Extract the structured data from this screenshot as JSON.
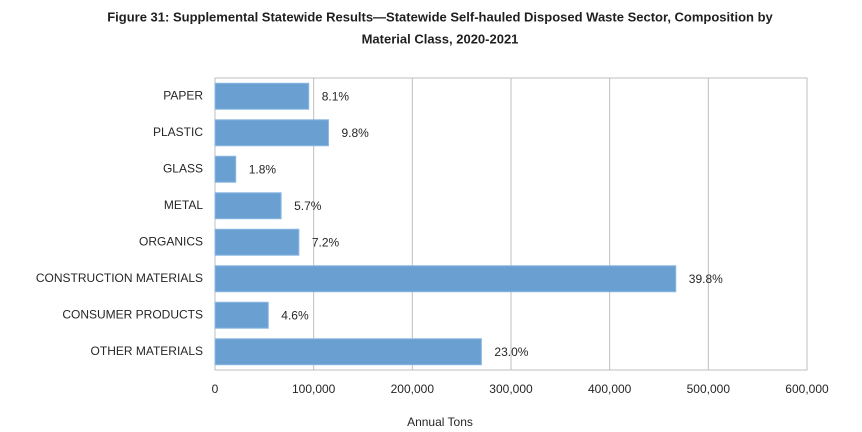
{
  "chart_data": {
    "type": "bar",
    "orientation": "horizontal",
    "title": [
      "Figure 31: Supplemental Statewide Results—Statewide Self-hauled Disposed Waste Sector, Composition by",
      "Material Class, 2020-2021"
    ],
    "x_label": "Annual Tons",
    "categories": [
      "PAPER",
      "PLASTIC",
      "GLASS",
      "METAL",
      "ORGANICS",
      "CONSTRUCTION MATERIALS",
      "CONSUMER PRODUCTS",
      "OTHER MATERIALS"
    ],
    "values": [
      95000,
      115000,
      21000,
      67000,
      85000,
      467000,
      54000,
      270000
    ],
    "value_labels": [
      "8.1%",
      "9.8%",
      "1.8%",
      "5.7%",
      "7.2%",
      "39.8%",
      "4.6%",
      "23.0%"
    ],
    "color": "#6a9fd2",
    "xlim": [
      0,
      600000
    ],
    "xticks": [
      0,
      {
        "value": 100000,
        "label": "100,000"
      },
      {
        "value": 200000,
        "label": "200,000"
      },
      {
        "value": 300000,
        "label": "300,000"
      },
      {
        "value": 400000,
        "label": "400,000"
      },
      {
        "value": 500000,
        "label": "500,000"
      },
      {
        "value": 600000,
        "label": "600,000"
      }
    ],
    "grid": true
  }
}
